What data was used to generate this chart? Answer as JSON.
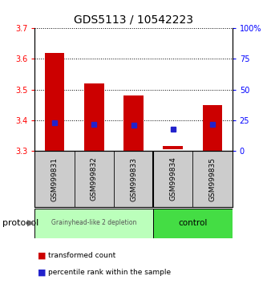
{
  "title": "GDS5113 / 10542223",
  "samples": [
    "GSM999831",
    "GSM999832",
    "GSM999833",
    "GSM999834",
    "GSM999835"
  ],
  "bar_bottoms": [
    3.3,
    3.3,
    3.3,
    3.305,
    3.3
  ],
  "bar_tops": [
    3.62,
    3.52,
    3.48,
    3.315,
    3.45
  ],
  "blue_dot_y": [
    3.39,
    3.385,
    3.383,
    3.37,
    3.385
  ],
  "ylim_left": [
    3.3,
    3.7
  ],
  "ylim_right": [
    0,
    100
  ],
  "right_ticks": [
    0,
    25,
    50,
    75,
    100
  ],
  "right_tick_labels": [
    "0",
    "25",
    "50",
    "75",
    "100%"
  ],
  "left_ticks": [
    3.3,
    3.4,
    3.5,
    3.6,
    3.7
  ],
  "bar_color": "#cc0000",
  "blue_color": "#2222cc",
  "group1_indices": [
    0,
    1,
    2
  ],
  "group2_indices": [
    3,
    4
  ],
  "group1_label": "Grainyhead-like 2 depletion",
  "group2_label": "control",
  "group1_bg": "#bbffbb",
  "group2_bg": "#44dd44",
  "protocol_label": "protocol",
  "legend_red_label": "transformed count",
  "legend_blue_label": "percentile rank within the sample",
  "sample_box_bg": "#cccccc",
  "bar_width": 0.5
}
